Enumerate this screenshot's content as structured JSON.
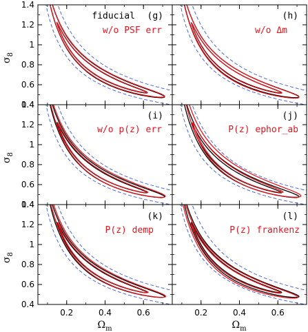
{
  "chart_data": {
    "type": "line",
    "layout": "3x2 grid of contour panels",
    "xlabel": "Ω",
    "xlabel_sub": "m",
    "ylabel": "σ",
    "ylabel_sub": "8",
    "xlim": [
      0.05,
      0.75
    ],
    "ylim": [
      0.4,
      1.4
    ],
    "xticks": [
      0.2,
      0.4,
      0.6
    ],
    "xtick_labels": [
      "0.2",
      "0.4",
      "0.6"
    ],
    "yticks": [
      0.4,
      0.6,
      0.8,
      1.0,
      1.2,
      1.4
    ],
    "ytick_labels": [
      "0.4",
      "0.6",
      "0.8",
      "1",
      "1.2",
      "1.4"
    ],
    "reference_curves": {
      "color": "#3a55e0",
      "style": "dashed",
      "amplitudes": [
        0.335,
        0.455
      ],
      "exponent": 0.6
    },
    "contours": {
      "black": "#000000",
      "red": "#e8141e",
      "outer": {
        "x_min": 0.07,
        "x_max": 0.71,
        "half_width": 0.048
      },
      "inner": {
        "x_min": 0.15,
        "x_max": 0.62,
        "half_width": 0.025
      }
    },
    "panels": [
      {
        "letter": "(g)",
        "legend_black": "fiducial",
        "legend_red": "w/o PSF err",
        "red_shift": [
          0.0,
          0.005
        ],
        "red_width": 1.0
      },
      {
        "letter": "(h)",
        "legend_black": "",
        "legend_red": "w/o Δm",
        "red_shift": [
          0.0,
          -0.004
        ],
        "red_width": 1.06
      },
      {
        "letter": "(i)",
        "legend_black": "",
        "legend_red": "w/o p(z) err",
        "red_shift": [
          0.004,
          0.004
        ],
        "red_width": 1.1
      },
      {
        "letter": "(j)",
        "legend_black": "",
        "legend_red": "P(z) ephor_ab",
        "red_shift": [
          0.01,
          0.008
        ],
        "red_width": 1.25
      },
      {
        "letter": "(k)",
        "legend_black": "",
        "legend_red": "P(z) demp",
        "red_shift": [
          0.006,
          0.002
        ],
        "red_width": 1.05
      },
      {
        "letter": "(l)",
        "legend_black": "",
        "legend_red": "P(z) frankenz",
        "red_shift": [
          -0.006,
          -0.006
        ],
        "red_width": 1.08
      }
    ]
  }
}
